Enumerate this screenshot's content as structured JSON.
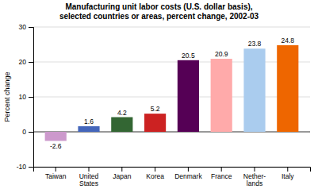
{
  "chart_data": {
    "type": "bar",
    "title": "Manufacturing unit labor costs (U.S. dollar basis),\nselected countries or areas, percent change, 2002-03",
    "ylabel": "Percent change",
    "categories": [
      "Taiwan",
      "United\nStates",
      "Japan",
      "Korea",
      "Denmark",
      "France",
      "Nether-\nlands",
      "Italy"
    ],
    "values": [
      -2.6,
      1.6,
      4.2,
      5.2,
      20.5,
      20.9,
      23.8,
      24.8
    ],
    "colors": [
      "#cc99cc",
      "#4466bb",
      "#336633",
      "#cc2222",
      "#550055",
      "#ffaaaa",
      "#aaccee",
      "#ee6600"
    ],
    "ylim": [
      -10,
      30
    ],
    "yticks": [
      -10,
      0,
      10,
      20,
      30
    ],
    "grid": true,
    "data_labels": true
  }
}
